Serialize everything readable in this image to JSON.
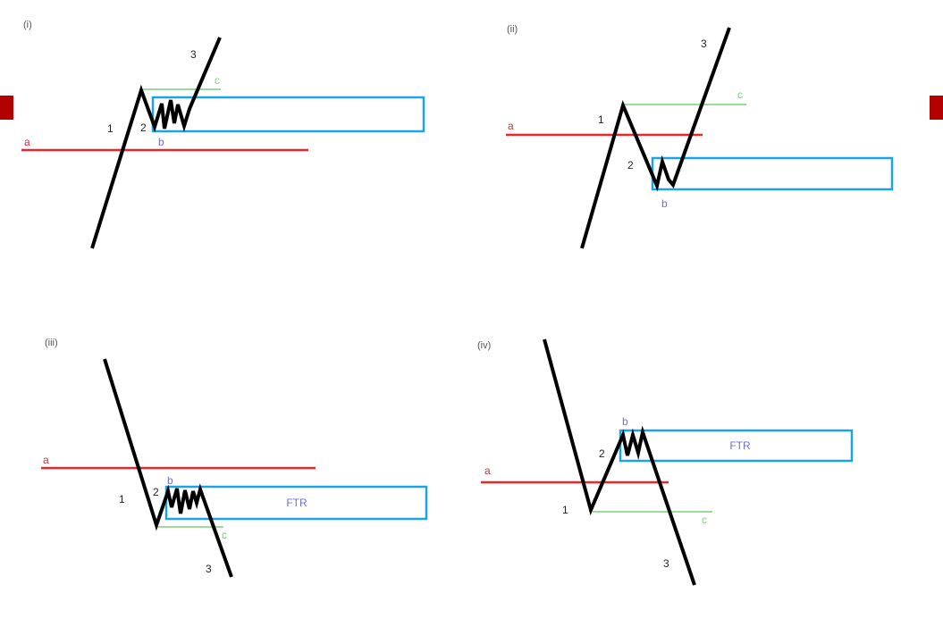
{
  "colors": {
    "price": "#000000",
    "level_a": "#e8262b",
    "level_c": "#7ccf7c",
    "zone": "#1aa3e6",
    "label_b": "#6f6fd0",
    "side_tab": "#b30000"
  },
  "panels": [
    {
      "title": "(i)",
      "wave_labels": [
        "1",
        "2",
        "3"
      ],
      "level_a_label": "a",
      "level_b_label": "b",
      "level_c_label": "c",
      "zone_label": ""
    },
    {
      "title": "(ii)",
      "wave_labels": [
        "1",
        "2",
        "3"
      ],
      "level_a_label": "a",
      "level_b_label": "b",
      "level_c_label": "c",
      "zone_label": ""
    },
    {
      "title": "(iii)",
      "wave_labels": [
        "1",
        "2",
        "3"
      ],
      "level_a_label": "a",
      "level_b_label": "b",
      "level_c_label": "c",
      "zone_label": "FTR"
    },
    {
      "title": "(iv)",
      "wave_labels": [
        "1",
        "2",
        "3"
      ],
      "level_a_label": "a",
      "level_b_label": "b",
      "level_c_label": "c",
      "zone_label": "FTR"
    }
  ]
}
